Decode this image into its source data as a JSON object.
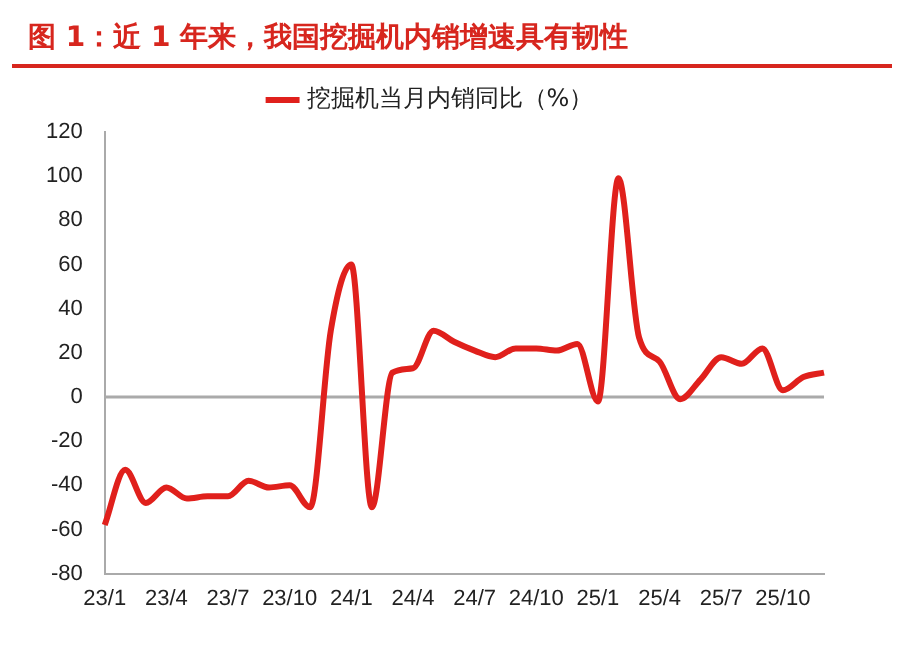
{
  "chart_data": {
    "type": "line",
    "title": "图 1：近 1 年来，我国挖掘机内销增速具有韧性",
    "categories": [
      "23/1",
      null,
      null,
      "23/4",
      null,
      null,
      "23/7",
      null,
      null,
      "23/10",
      null,
      null,
      "24/1",
      null,
      null,
      "24/4",
      null,
      null,
      "24/7",
      null,
      null,
      "24/10",
      null,
      null,
      "25/1",
      null,
      null,
      "25/4",
      null,
      null,
      "25/7",
      null,
      null,
      "25/10",
      null,
      null
    ],
    "series": [
      {
        "name": "挖掘机当月内销同比（%）",
        "color": "#e0201c",
        "values": [
          -58,
          -33,
          -48,
          -41,
          -46,
          -45,
          -45,
          -38,
          -41,
          -40,
          -50,
          30,
          60,
          -50,
          11,
          13,
          30,
          25,
          21,
          18,
          22,
          22,
          21,
          24,
          -2,
          99,
          27,
          16,
          -1,
          8,
          18,
          15,
          22,
          3,
          9,
          11
        ]
      }
    ],
    "ylim": [
      -80,
      120
    ],
    "yticks": [
      -80,
      -60,
      -40,
      -20,
      0,
      20,
      40,
      60,
      80,
      100,
      120
    ],
    "ref_lines": [
      {
        "axis": "y",
        "value": 0,
        "color": "#aaaaaa"
      }
    ],
    "grid": false,
    "legend": "top",
    "marker": "none",
    "line_style": "solid"
  }
}
